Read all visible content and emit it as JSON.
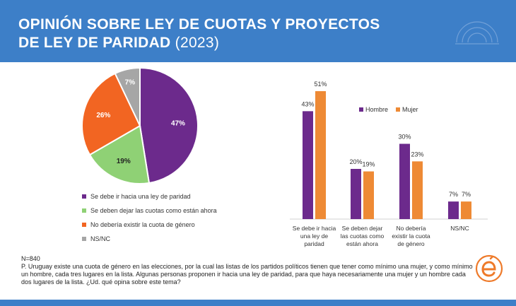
{
  "title": {
    "line1": "OPINIÓN SOBRE LEY DE CUOTAS Y PROYECTOS",
    "line2": "DE LEY DE PARIDAD",
    "year": "(2023)"
  },
  "colors": {
    "paridad": "#6c2a8c",
    "cuotas": "#8fd175",
    "no_cuota": "#f26522",
    "nsnc": "#a6a6a6",
    "hombre": "#6c2a8c",
    "mujer": "#ee8a35",
    "header": "#3d7fc8"
  },
  "chart_data": [
    {
      "type": "pie",
      "categories": [
        "Se debe ir hacia una ley de paridad",
        "Se deben dejar las cuotas como están ahora",
        "No debería existir la cuota de género",
        "NS/NC"
      ],
      "values": [
        47,
        19,
        26,
        7
      ],
      "labels": [
        "47%",
        "19%",
        "26%",
        "7%"
      ]
    },
    {
      "type": "bar",
      "categories": [
        [
          "Se debe ir hacia",
          "una ley de",
          "paridad"
        ],
        [
          "Se deben dejar",
          "las cuotas como",
          "están ahora"
        ],
        [
          "No debería",
          "existir la cuota",
          "de género"
        ],
        [
          "NS/NC"
        ]
      ],
      "series": [
        {
          "name": "Hombre",
          "values": [
            43,
            20,
            30,
            7
          ],
          "labels": [
            "43%",
            "20%",
            "30%",
            "7%"
          ]
        },
        {
          "name": "Mujer",
          "values": [
            51,
            19,
            23,
            7
          ],
          "labels": [
            "51%",
            "19%",
            "23%",
            "7%"
          ]
        }
      ],
      "ylim": [
        0,
        55
      ]
    }
  ],
  "notes": {
    "n": "N=840",
    "question": "P. Uruguay existe una cuota de género en las elecciones, por la cual las listas de los partidos políticos tienen que tener como mínimo una mujer, y como mínimo un hombre, cada tres lugares en la lista. Algunas personas proponen ir hacia una ley de paridad, para que haya necesariamente una mujer y un hombre cada dos lugares de la lista. ¿Ud. qué opina sobre este tema?"
  }
}
